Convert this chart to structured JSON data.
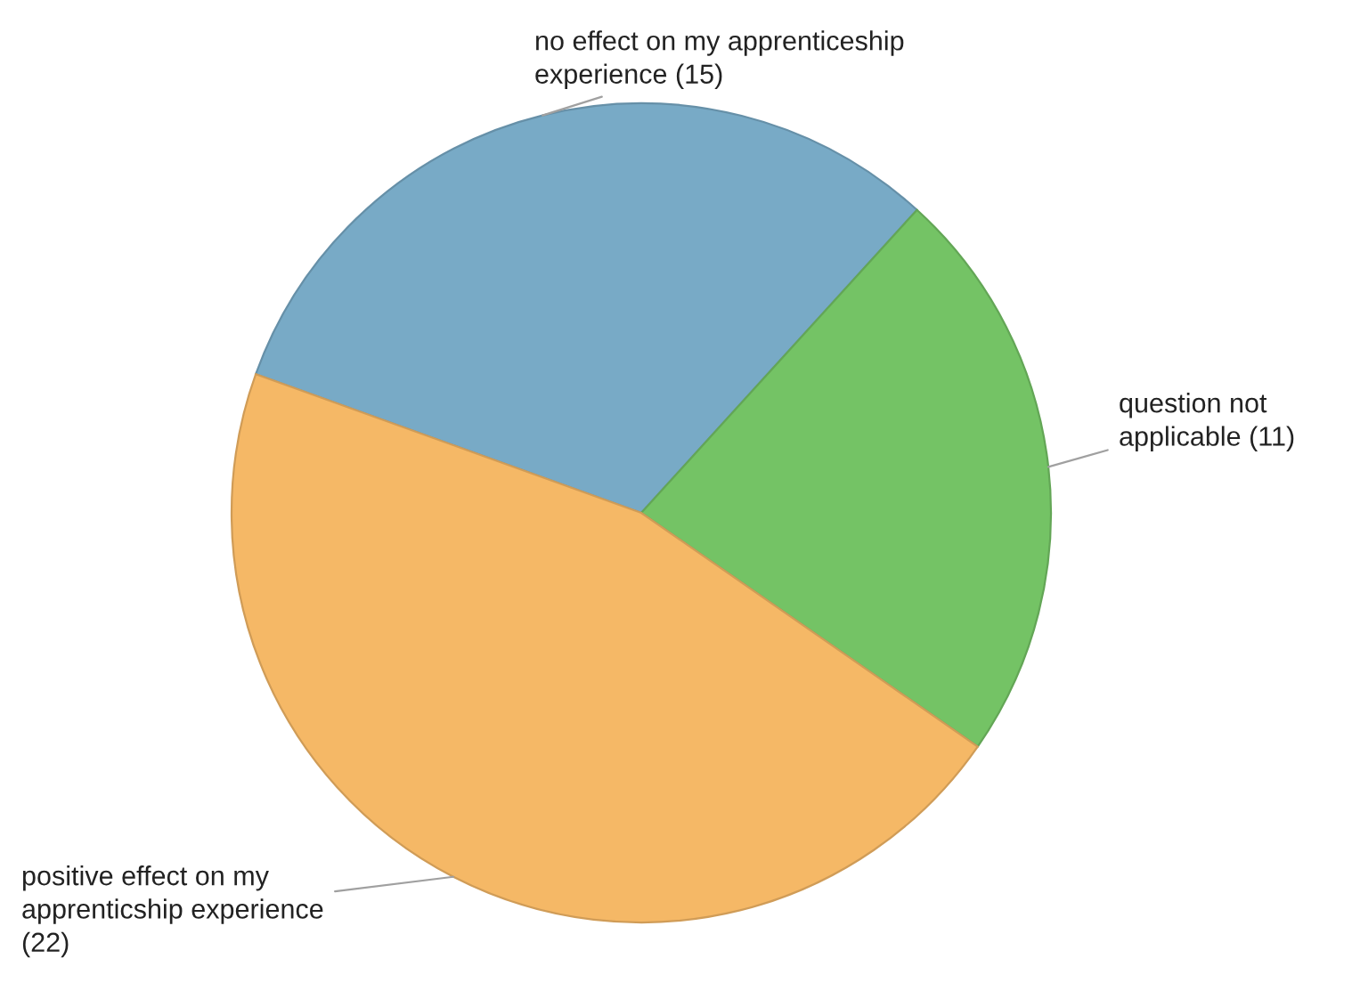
{
  "chart_data": {
    "type": "pie",
    "categories": [
      "no effect on my apprenticeship experience",
      "question not applicable",
      "positive effect on my apprenticship experience"
    ],
    "values": [
      15,
      11,
      22
    ],
    "colors": [
      "#78aac6",
      "#74c365",
      "#f5b866"
    ],
    "value_labels": [
      "(15)",
      "(11)",
      "(22)"
    ]
  }
}
